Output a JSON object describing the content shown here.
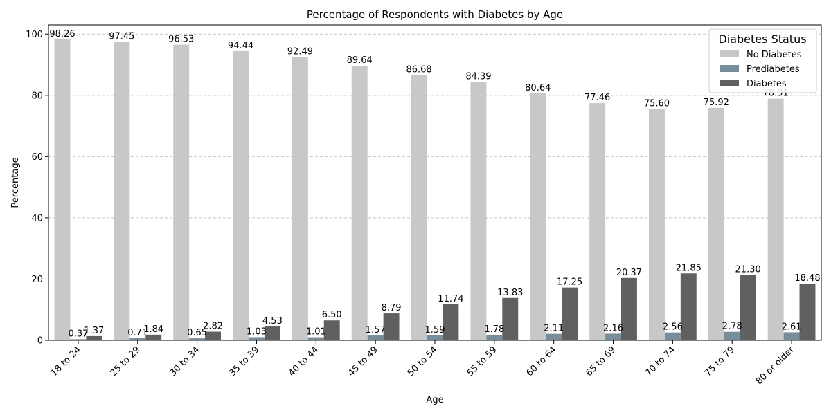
{
  "chart_data": {
    "type": "bar",
    "title": "Percentage of Respondents with Diabetes by Age",
    "xlabel": "Age",
    "ylabel": "Percentage",
    "ylim": [
      0,
      103
    ],
    "yticks": [
      0,
      20,
      40,
      60,
      80,
      100
    ],
    "grid": "y-dashed",
    "legend": {
      "title": "Diabetes Status",
      "placement": "top-right"
    },
    "categories": [
      "18 to 24",
      "25 to 29",
      "30 to 34",
      "35 to 39",
      "40 to 44",
      "45 to 49",
      "50 to 54",
      "55 to 59",
      "60 to 64",
      "65 to 69",
      "70 to 74",
      "75 to 79",
      "80 or older"
    ],
    "series": [
      {
        "name": "No Diabetes",
        "color": "#c8c8c8",
        "values": [
          98.26,
          97.45,
          96.53,
          94.44,
          92.49,
          89.64,
          86.68,
          84.39,
          80.64,
          77.46,
          75.6,
          75.92,
          78.91
        ]
      },
      {
        "name": "Prediabetes",
        "color": "#778d99",
        "values": [
          0.37,
          0.71,
          0.65,
          1.03,
          1.01,
          1.57,
          1.59,
          1.78,
          2.11,
          2.16,
          2.56,
          2.78,
          2.61
        ]
      },
      {
        "name": "Diabetes",
        "color": "#606060",
        "values": [
          1.37,
          1.84,
          2.82,
          4.53,
          6.5,
          8.79,
          11.74,
          13.83,
          17.25,
          20.37,
          21.85,
          21.3,
          18.48
        ]
      }
    ]
  }
}
